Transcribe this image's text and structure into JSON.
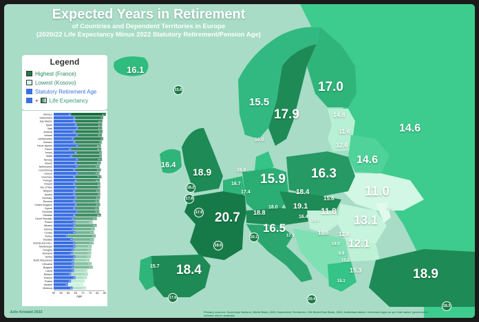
{
  "title": {
    "main": "Expected Years in Retirement",
    "sub1": "of Countries and Dependent Territories in Europe",
    "sub2": "(2020/22 Life Expectancy Minus 2022 Statutory Retirement/Pension Age)"
  },
  "legend": {
    "title": "Legend",
    "highest": "Highest (France)",
    "lowest": "Lowest (Kosovo)",
    "retirement": "Statutory Retirement Age",
    "plus": "+",
    "life": "Life Expectancy"
  },
  "colors": {
    "sea": "#a8dcc7",
    "highest": "#1e7a4a",
    "lowest": "#d9f7e8",
    "retirement_bar": "#3a6fe0",
    "life_bar": "#2ea06a"
  },
  "map_labels": [
    {
      "id": "iceland",
      "value": "16.1"
    },
    {
      "id": "norway",
      "value": "15.5"
    },
    {
      "id": "sweden",
      "value": "17.9"
    },
    {
      "id": "finland",
      "value": "17.0"
    },
    {
      "id": "russia",
      "value": "14.6"
    },
    {
      "id": "estonia",
      "value": "14.8"
    },
    {
      "id": "latvia",
      "value": "11.6"
    },
    {
      "id": "lithuania",
      "value": "12.6"
    },
    {
      "id": "belarus",
      "value": "14.6"
    },
    {
      "id": "ireland",
      "value": "16.4"
    },
    {
      "id": "uk",
      "value": "18.9"
    },
    {
      "id": "denmark",
      "value": "16.0"
    },
    {
      "id": "netherlands",
      "value": "16.0"
    },
    {
      "id": "belgium",
      "value": "16.7"
    },
    {
      "id": "luxembourg",
      "value": "17.4"
    },
    {
      "id": "germany",
      "value": "15.9"
    },
    {
      "id": "poland",
      "value": "16.3"
    },
    {
      "id": "czechia",
      "value": "18.4"
    },
    {
      "id": "slovakia",
      "value": "15.6"
    },
    {
      "id": "ukraine",
      "value": "11.0"
    },
    {
      "id": "france",
      "value": "20.7"
    },
    {
      "id": "switzerland",
      "value": "18.8"
    },
    {
      "id": "liechtenstein",
      "value": "18.0"
    },
    {
      "id": "austria",
      "value": "19.1"
    },
    {
      "id": "slovenia",
      "value": "16.4"
    },
    {
      "id": "croatia",
      "value": "15.0"
    },
    {
      "id": "hungary",
      "value": "11.8"
    },
    {
      "id": "moldova",
      "value": "9.0"
    },
    {
      "id": "romania",
      "value": "13.1"
    },
    {
      "id": "italy",
      "value": "16.5"
    },
    {
      "id": "bosnia",
      "value": "12.5"
    },
    {
      "id": "serbia",
      "value": "12.8"
    },
    {
      "id": "bulgaria",
      "value": "12.1"
    },
    {
      "id": "montenegro",
      "value": "14.0"
    },
    {
      "id": "kosovo",
      "value": "9.9"
    },
    {
      "id": "north_macedonia",
      "value": "15.2"
    },
    {
      "id": "greece",
      "value": "15.3"
    },
    {
      "id": "albania",
      "value": "15.1"
    },
    {
      "id": "spain",
      "value": "18.4"
    },
    {
      "id": "portugal",
      "value": "15.7"
    },
    {
      "id": "turkey",
      "value": "18.9"
    },
    {
      "id": "monaco",
      "value": "20.1"
    },
    {
      "id": "san_marino",
      "value": "17.9"
    }
  ],
  "circle_labels": [
    {
      "id": "faroe",
      "value": "15.8"
    },
    {
      "id": "isle_of_man",
      "value": "18.2"
    },
    {
      "id": "jersey",
      "value": "17.0"
    },
    {
      "id": "guernsey",
      "value": "17.8"
    },
    {
      "id": "andorra",
      "value": "18.6"
    },
    {
      "id": "monaco_c",
      "value": "20.1"
    },
    {
      "id": "gibraltar",
      "value": "17.0"
    },
    {
      "id": "malta",
      "value": "20.4"
    },
    {
      "id": "cyprus",
      "value": "18.3"
    }
  ],
  "chart_data": {
    "type": "bar",
    "xlabel": "Age",
    "xlim": [
      50,
      85
    ],
    "ticks": [
      "50",
      "55",
      "60",
      "65",
      "70",
      "75",
      "80",
      "85"
    ],
    "categories": [
      "Monaco",
      "Switzerland",
      "San Marino",
      "Spain",
      "Italy",
      "Andorra",
      "Iceland",
      "Liechtenstein",
      "Sweden",
      "Faroe Islands",
      "France",
      "Jersey",
      "Malta",
      "Norway",
      "Ireland",
      "Netherlands",
      "Luxembourg",
      "Greece",
      "Guernsey",
      "Portugal",
      "Finland",
      "Isle of Man",
      "Belgium",
      "Austria",
      "Germany",
      "Slovenia",
      "United Kingdom",
      "Cyprus",
      "Denmark",
      "Gibraltar",
      "Czech Republic",
      "Poland",
      "Albania",
      "Estonia",
      "Croatia",
      "Turkey",
      "Slovakia",
      "Bosnia and Herz.",
      "Montenegro",
      "Hungary",
      "Romania",
      "Serbia",
      "North Macedonia",
      "Lithuania",
      "Bulgaria",
      "Latvia",
      "Belarus",
      "Kosovo",
      "Russia",
      "Ukraine",
      "Moldova"
    ],
    "series": [
      {
        "name": "Statutory Retirement Age",
        "values": [
          62,
          65,
          65,
          66,
          67,
          65,
          67,
          64,
          65,
          67,
          62,
          66,
          63,
          67,
          66,
          67,
          65,
          67,
          65,
          66,
          65,
          66,
          65,
          65,
          66,
          65,
          66,
          65,
          67,
          65,
          64,
          65,
          65,
          64,
          65,
          60,
          63,
          65,
          65,
          64,
          63,
          65,
          64,
          64,
          64,
          64,
          62,
          65,
          62,
          60,
          63
        ]
      },
      {
        "name": "Life Expectancy",
        "values": [
          85.9,
          84,
          83.5,
          83.3,
          83.3,
          83.6,
          83.1,
          84,
          83,
          82.5,
          82.7,
          83,
          83,
          83.2,
          82.4,
          81.6,
          82.4,
          81.5,
          82.8,
          81.7,
          82,
          82,
          81.9,
          82,
          81.9,
          81.4,
          81.9,
          81.3,
          81.4,
          82.5,
          79.7,
          76.8,
          79.6,
          78.2,
          77.7,
          78.9,
          77.7,
          77.5,
          76.1,
          75.9,
          75.8,
          75.5,
          74.7,
          76.1,
          76.9,
          73.1,
          73.6,
          72.9,
          71.3,
          70.4,
          72.3
        ]
      }
    ]
  },
  "credit": {
    "author": "Julie Kriwald 2022",
    "sources": "Primary sources: Sovereign Nations: World Bank, 2020; Dependent Territories: CIA World Fact Book, 2022; Individual states' retirement ages as per that states' government website where available"
  }
}
